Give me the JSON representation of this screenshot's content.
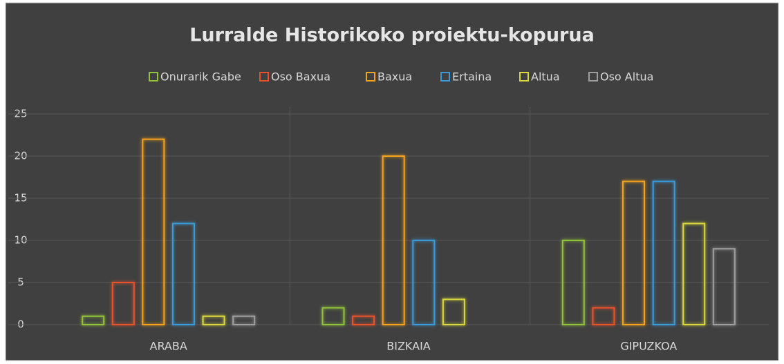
{
  "chart_data": {
    "type": "bar",
    "title": "Lurralde Historikoko proiektu-kopurua",
    "categories": [
      "ARABA",
      "BIZKAIA",
      "GIPUZKOA"
    ],
    "series": [
      {
        "name": "Onurarik Gabe",
        "color": "#92c13a",
        "values": [
          1,
          2,
          10
        ]
      },
      {
        "name": "Oso Baxua",
        "color": "#e8532b",
        "values": [
          5,
          1,
          2
        ]
      },
      {
        "name": "Baxua",
        "color": "#f6a21c",
        "values": [
          22,
          20,
          17
        ]
      },
      {
        "name": "Ertaina",
        "color": "#3b9ad8",
        "values": [
          12,
          10,
          17
        ]
      },
      {
        "name": "Altua",
        "color": "#d9d93c",
        "values": [
          1,
          3,
          12
        ]
      },
      {
        "name": "Oso Altua",
        "color": "#9e9e9e",
        "values": [
          1,
          0,
          9
        ]
      }
    ],
    "ylim": [
      0,
      25
    ],
    "yticks": [
      0,
      5,
      10,
      15,
      20,
      25
    ],
    "grid": true,
    "legend": "top"
  }
}
